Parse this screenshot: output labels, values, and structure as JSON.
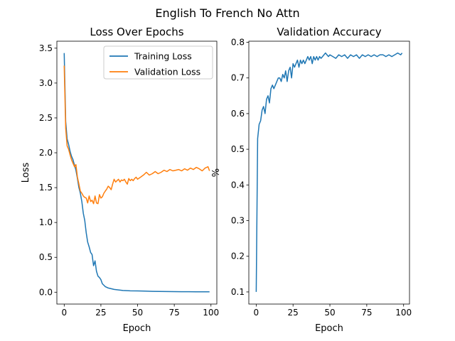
{
  "suptitle": "English To French No Attn",
  "chart_data": [
    {
      "type": "line",
      "title": "Loss Over Epochs",
      "xlabel": "Epoch",
      "ylabel": "Loss",
      "xlim": [
        -5,
        104
      ],
      "ylim": [
        -0.17,
        3.6
      ],
      "xticks": [
        0,
        25,
        50,
        75,
        100
      ],
      "yticks": [
        0.0,
        0.5,
        1.0,
        1.5,
        2.0,
        2.5,
        3.0,
        3.5
      ],
      "legend": "top-right",
      "grid": false,
      "series": [
        {
          "name": "Training Loss",
          "color": "#1f77b4",
          "x": [
            0,
            1,
            2,
            3,
            4,
            5,
            6,
            7,
            8,
            9,
            10,
            11,
            12,
            13,
            14,
            15,
            16,
            17,
            18,
            19,
            20,
            21,
            22,
            23,
            24,
            25,
            26,
            27,
            28,
            29,
            30,
            32,
            34,
            36,
            38,
            40,
            45,
            50,
            55,
            60,
            65,
            70,
            75,
            80,
            85,
            90,
            95,
            99
          ],
          "y": [
            3.43,
            2.45,
            2.2,
            2.12,
            2.02,
            1.95,
            1.9,
            1.82,
            1.75,
            1.63,
            1.5,
            1.42,
            1.3,
            1.13,
            1.03,
            0.85,
            0.72,
            0.65,
            0.57,
            0.54,
            0.38,
            0.45,
            0.3,
            0.23,
            0.21,
            0.18,
            0.12,
            0.1,
            0.08,
            0.07,
            0.06,
            0.05,
            0.04,
            0.035,
            0.03,
            0.025,
            0.02,
            0.018,
            0.015,
            0.012,
            0.01,
            0.009,
            0.008,
            0.007,
            0.007,
            0.006,
            0.006,
            0.006
          ]
        },
        {
          "name": "Validation Loss",
          "color": "#ff7f0e",
          "x": [
            0,
            1,
            2,
            3,
            4,
            5,
            6,
            7,
            8,
            9,
            10,
            11,
            12,
            13,
            14,
            15,
            16,
            17,
            18,
            19,
            20,
            21,
            22,
            23,
            24,
            25,
            26,
            27,
            28,
            29,
            30,
            31,
            32,
            33,
            34,
            35,
            36,
            37,
            38,
            39,
            40,
            41,
            42,
            43,
            44,
            45,
            46,
            47,
            48,
            49,
            50,
            52,
            54,
            56,
            58,
            60,
            62,
            64,
            66,
            68,
            70,
            72,
            74,
            76,
            78,
            80,
            82,
            84,
            86,
            88,
            90,
            92,
            94,
            96,
            98,
            99
          ],
          "y": [
            3.25,
            2.35,
            2.1,
            2.05,
            1.97,
            1.9,
            1.85,
            1.8,
            1.83,
            1.65,
            1.55,
            1.45,
            1.42,
            1.38,
            1.36,
            1.35,
            1.28,
            1.38,
            1.3,
            1.32,
            1.27,
            1.38,
            1.28,
            1.27,
            1.4,
            1.35,
            1.37,
            1.42,
            1.45,
            1.48,
            1.52,
            1.5,
            1.47,
            1.55,
            1.62,
            1.58,
            1.6,
            1.62,
            1.58,
            1.61,
            1.6,
            1.62,
            1.58,
            1.55,
            1.63,
            1.6,
            1.62,
            1.6,
            1.63,
            1.65,
            1.62,
            1.65,
            1.68,
            1.72,
            1.68,
            1.7,
            1.73,
            1.7,
            1.72,
            1.75,
            1.73,
            1.76,
            1.74,
            1.75,
            1.76,
            1.74,
            1.77,
            1.75,
            1.78,
            1.76,
            1.79,
            1.77,
            1.74,
            1.78,
            1.8,
            1.74
          ]
        }
      ]
    },
    {
      "type": "line",
      "title": "Validation Accuracy",
      "xlabel": "Epoch",
      "ylabel": "%",
      "xlim": [
        -5,
        104
      ],
      "ylim": [
        0.066,
        0.803
      ],
      "xticks": [
        0,
        25,
        50,
        75,
        100
      ],
      "yticks": [
        0.1,
        0.2,
        0.3,
        0.4,
        0.5,
        0.6,
        0.7,
        0.8
      ],
      "grid": false,
      "series": [
        {
          "color": "#1f77b4",
          "x": [
            0,
            1,
            2,
            3,
            4,
            5,
            6,
            7,
            8,
            9,
            10,
            11,
            12,
            13,
            14,
            15,
            16,
            17,
            18,
            19,
            20,
            21,
            22,
            23,
            24,
            25,
            26,
            27,
            28,
            29,
            30,
            31,
            32,
            33,
            34,
            35,
            36,
            37,
            38,
            39,
            40,
            41,
            42,
            43,
            44,
            45,
            46,
            47,
            48,
            49,
            50,
            52,
            54,
            56,
            58,
            60,
            62,
            64,
            66,
            68,
            70,
            72,
            74,
            76,
            78,
            80,
            82,
            84,
            86,
            88,
            90,
            92,
            94,
            96,
            98,
            99
          ],
          "y": [
            0.1,
            0.53,
            0.57,
            0.58,
            0.61,
            0.62,
            0.6,
            0.64,
            0.65,
            0.63,
            0.67,
            0.68,
            0.67,
            0.68,
            0.69,
            0.7,
            0.7,
            0.69,
            0.71,
            0.7,
            0.72,
            0.69,
            0.72,
            0.73,
            0.7,
            0.74,
            0.73,
            0.74,
            0.75,
            0.73,
            0.75,
            0.74,
            0.75,
            0.74,
            0.75,
            0.76,
            0.75,
            0.76,
            0.74,
            0.76,
            0.75,
            0.76,
            0.75,
            0.76,
            0.755,
            0.76,
            0.765,
            0.77,
            0.765,
            0.76,
            0.765,
            0.76,
            0.755,
            0.765,
            0.76,
            0.765,
            0.755,
            0.765,
            0.76,
            0.765,
            0.755,
            0.765,
            0.76,
            0.765,
            0.76,
            0.765,
            0.76,
            0.765,
            0.765,
            0.76,
            0.765,
            0.76,
            0.765,
            0.77,
            0.765,
            0.77
          ]
        }
      ]
    }
  ]
}
